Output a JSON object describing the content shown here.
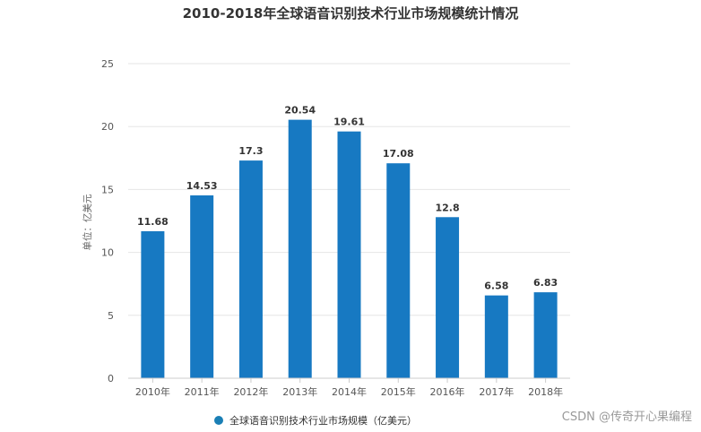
{
  "chart_data": {
    "type": "bar",
    "title": "2010-2018年全球语音识别技术行业市场规模统计情况",
    "ylabel": "单位：亿美元",
    "categories": [
      "2010年",
      "2011年",
      "2012年",
      "2013年",
      "2014年",
      "2015年",
      "2016年",
      "2017年",
      "2018年"
    ],
    "series": [
      {
        "name": "全球语音识别技术行业市场规模（亿美元）",
        "values": [
          11.68,
          14.53,
          17.3,
          20.54,
          19.61,
          17.08,
          12.8,
          6.58,
          6.83
        ],
        "labels": [
          "11.68",
          "14.53",
          "17.3",
          "20.54",
          "19.61",
          "17.08",
          "12.8",
          "6.58",
          "6.83"
        ]
      }
    ],
    "yticks": [
      "0",
      "5",
      "10",
      "15",
      "20",
      "25"
    ],
    "ylim": [
      0,
      25
    ],
    "grid": true,
    "legend": "bottom-center",
    "bar_color": "#1779c2",
    "legend_marker_color": "#1a7fb5"
  },
  "watermark": "CSDN @传奇开心果编程"
}
